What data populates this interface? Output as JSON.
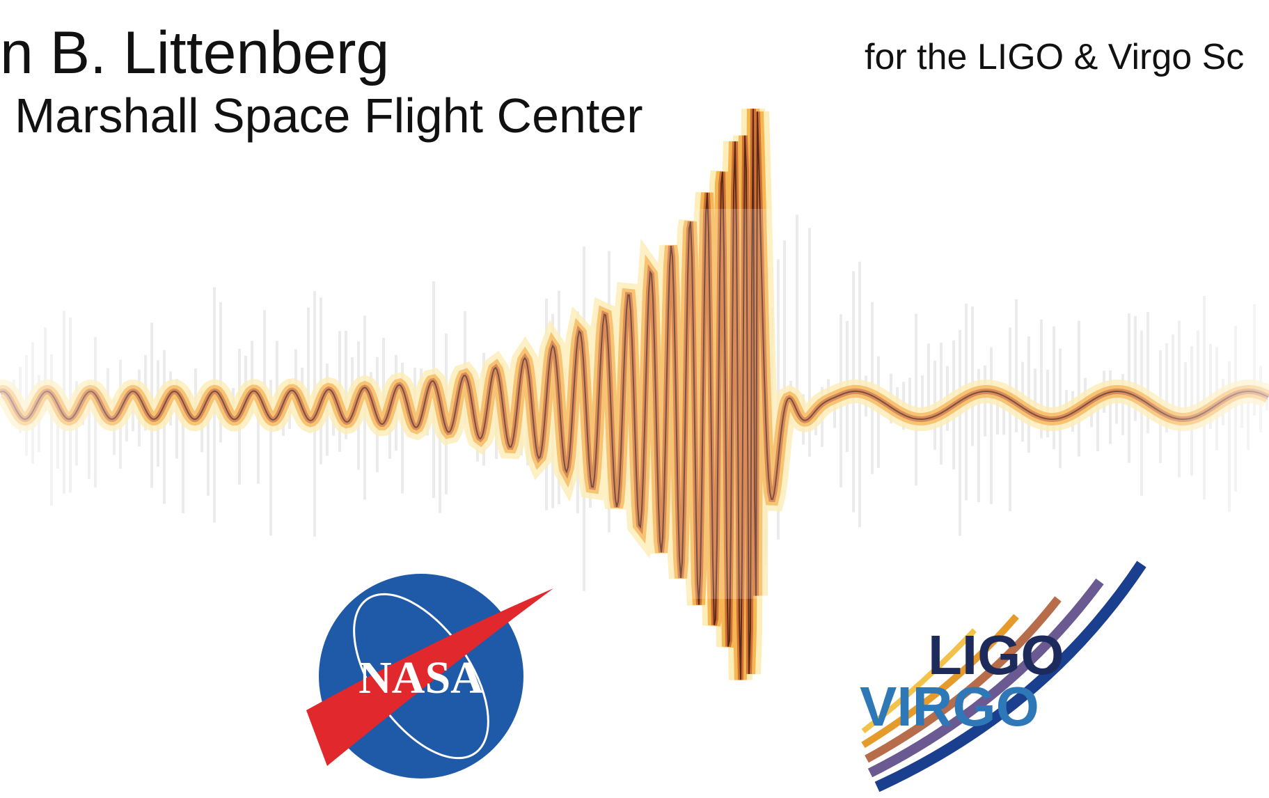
{
  "header": {
    "name": "n B. Littenberg",
    "affiliation": "Marshall Space Flight Center",
    "collaboration": "for the LIGO & Virgo Sc"
  },
  "logos": {
    "nasa": "NASA",
    "ligo": "LIGO",
    "virgo": "VIRGO"
  }
}
